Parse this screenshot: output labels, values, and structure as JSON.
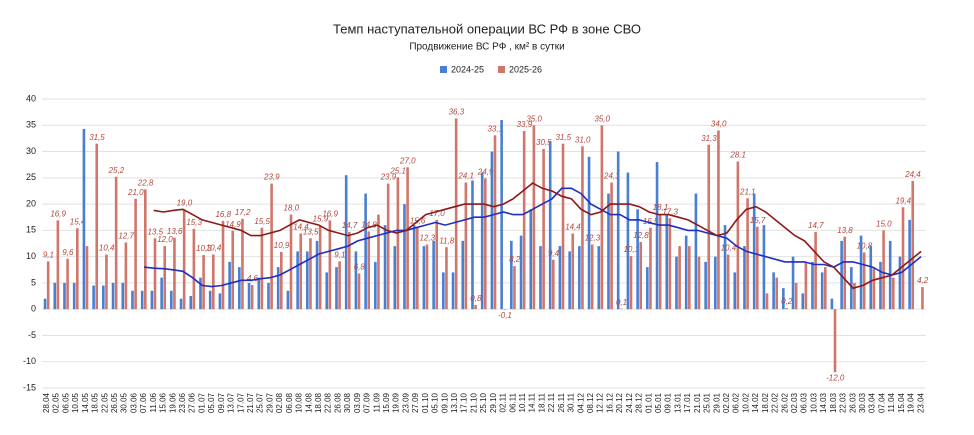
{
  "chart_data": {
    "type": "bar",
    "title": "Темп наступательной операции ВС РФ в зоне СВО",
    "subtitle": "Продвижение ВС РФ , км² в сутки",
    "categories": [
      "28.04",
      "02.05",
      "06.05",
      "10.05",
      "14.05",
      "18.05",
      "22.05",
      "26.05",
      "30.05",
      "03.06",
      "07.06",
      "11.06",
      "15.06",
      "19.06",
      "23.06",
      "27.06",
      "01.07",
      "05.07",
      "09.07",
      "13.07",
      "17.07",
      "21.07",
      "25.07",
      "29.07",
      "02.08",
      "06.08",
      "10.08",
      "14.08",
      "18.08",
      "22.08",
      "26.08",
      "30.08",
      "03.09",
      "07.09",
      "11.09",
      "15.09",
      "19.09",
      "23.09",
      "27.09",
      "01.10",
      "05.10",
      "09.10",
      "13.10",
      "17.10",
      "21.10",
      "25.10",
      "29.10",
      "02.11",
      "06.11",
      "10.11",
      "14.11",
      "18.11",
      "22.11",
      "26.11",
      "30.11",
      "04.12",
      "08.12",
      "12.12",
      "16.12",
      "20.12",
      "24.12",
      "28.12",
      "01.01",
      "05.01",
      "09.01",
      "13.01",
      "17.01",
      "21.01",
      "25.01",
      "29.01",
      "02.02",
      "06.02",
      "10.02",
      "14.02",
      "18.02",
      "22.02",
      "26.02",
      "02.03",
      "06.03",
      "10.03",
      "14.03",
      "18.03",
      "22.03",
      "26.03",
      "30.03",
      "03.04",
      "07.04",
      "11.04",
      "15.04",
      "19.04",
      "23.04"
    ],
    "series": [
      {
        "name": "2024-25",
        "color": "#4a7fd0",
        "values": [
          2,
          5,
          5,
          5,
          34.3,
          4.5,
          4.5,
          5,
          5,
          3.5,
          3.5,
          3.5,
          6,
          3.5,
          2,
          2.5,
          6,
          3.5,
          3,
          9,
          8,
          5,
          6,
          5,
          8,
          3.5,
          11,
          11,
          13,
          7,
          8,
          25.5,
          11,
          22,
          9,
          16,
          12,
          20,
          16,
          12,
          13,
          7,
          7,
          13,
          24.5,
          26,
          30,
          36,
          13,
          14,
          19,
          12,
          32,
          12,
          11,
          12,
          29,
          12,
          22,
          30,
          26,
          19,
          8,
          28,
          18,
          10,
          14,
          22,
          9,
          10,
          16,
          7,
          12,
          22,
          16,
          7,
          4,
          10,
          3,
          9,
          7,
          2,
          13,
          8,
          14,
          12,
          9,
          13,
          10,
          17,
          null
        ]
      },
      {
        "name": "2025-26",
        "color": "#d0766a",
        "values": [
          9.1,
          16.9,
          9.6,
          15.4,
          12.0,
          31.5,
          10.4,
          25.2,
          12.7,
          21.0,
          22.8,
          13.5,
          12.0,
          13.6,
          19.0,
          15.3,
          10.3,
          10.4,
          16.8,
          14.9,
          17.2,
          4.6,
          15.5,
          23.9,
          10.9,
          18.0,
          14.4,
          13.5,
          15.9,
          16.9,
          9.1,
          14.7,
          6.8,
          14.8,
          18.0,
          23.9,
          25.1,
          27.0,
          15.6,
          12.3,
          17.0,
          11.8,
          36.3,
          24.1,
          0.8,
          24.9,
          33.1,
          -0.1,
          8.2,
          33.9,
          35.0,
          30.5,
          9.4,
          31.5,
          14.4,
          31.0,
          12.3,
          35.0,
          24.1,
          0.1,
          10.1,
          12.8,
          15.5,
          18.1,
          17.3,
          12.0,
          12.0,
          10.0,
          31.3,
          34.0,
          10.4,
          28.1,
          21.1,
          15.7,
          3.0,
          6.0,
          0.2,
          5.0,
          9.0,
          14.7,
          8.0,
          -12.0,
          13.8,
          5.0,
          10.8,
          8.0,
          15.0,
          6.0,
          19.4,
          24.4,
          4.2
        ],
        "value_labels": [
          "9,1",
          "16,9",
          "9,6",
          "15,4",
          null,
          "31,5",
          "10,4",
          "25,2",
          "12,7",
          "21,0",
          "22,8",
          "13,5",
          "12,0",
          "13,6",
          "19,0",
          "15,3",
          "10,3",
          "10,4",
          "16,8",
          "14,9",
          "17,2",
          "4,6",
          "15,5",
          "23,9",
          "10,9",
          "18,0",
          "14,4",
          "13,5",
          "15,9",
          "16,9",
          "9,1",
          "14,7",
          "6,8",
          "14,8",
          null,
          "23,9",
          "25,1",
          "27,0",
          "15,6",
          "12,3",
          "17,0",
          "11,8",
          "36,3",
          "24,1",
          "0,8",
          "24,9",
          "33,1",
          "-0,1",
          "8,2",
          "33,9",
          "35,0",
          "30,5",
          "9,4",
          "31,5",
          "14,4",
          "31,0",
          "12,3",
          "35,0",
          "24,1",
          "0,1",
          "10,1",
          "12,8",
          "15,5",
          "18,1",
          "17,3",
          null,
          null,
          null,
          "31,3",
          "34,0",
          "10,4",
          "28,1",
          "21,1",
          "15,7",
          null,
          null,
          "0,2",
          null,
          null,
          "14,7",
          null,
          "-12,0",
          "13,8",
          null,
          "10,8",
          null,
          "15,0",
          null,
          "19,4",
          "24,4",
          "4,2"
        ]
      }
    ],
    "lines": [
      {
        "color": "#1f2fc0",
        "values": [
          null,
          null,
          null,
          null,
          null,
          null,
          null,
          null,
          null,
          null,
          8,
          7.8,
          7.7,
          7.5,
          7.2,
          6,
          4.5,
          4.3,
          4.5,
          5,
          5.5,
          5.5,
          5.8,
          6,
          6.5,
          7.5,
          8.5,
          9.5,
          10.5,
          11,
          11.5,
          12,
          13,
          13.5,
          14,
          14.5,
          15,
          15,
          15.5,
          16,
          16.5,
          16,
          16.5,
          17,
          17.5,
          17.5,
          18,
          18.5,
          18,
          18,
          19,
          20,
          21,
          23,
          23,
          22,
          20,
          19,
          18,
          18,
          17,
          17,
          16.5,
          16,
          16,
          15.5,
          15,
          15,
          14.5,
          14,
          13.5,
          12,
          11,
          10.5,
          10,
          9.5,
          9,
          9,
          9,
          8.5,
          8.5,
          8,
          9,
          9,
          8.5,
          8,
          7,
          6.5,
          7,
          8.5,
          10
        ]
      },
      {
        "color": "#8b1a1a",
        "values": [
          null,
          null,
          null,
          null,
          null,
          null,
          null,
          null,
          null,
          null,
          null,
          18.8,
          18.5,
          18.8,
          19,
          18,
          17,
          16.5,
          16,
          15.5,
          15,
          14,
          14,
          14.5,
          15,
          16,
          17,
          16.5,
          16,
          15,
          14.5,
          14,
          14.5,
          15.5,
          16,
          15,
          14.5,
          15,
          16.5,
          18,
          18.5,
          19,
          19.5,
          20,
          20,
          20,
          19.5,
          20,
          21,
          22.5,
          24,
          23,
          22.5,
          21.5,
          21,
          19,
          18,
          18.5,
          20,
          20,
          20,
          19.5,
          18.5,
          18,
          18,
          17.5,
          17,
          16,
          15,
          14,
          14.5,
          17,
          19,
          19.5,
          18.5,
          17,
          15.5,
          14,
          13,
          11,
          9,
          8,
          6,
          4,
          4.5,
          5.5,
          6,
          6.5,
          8,
          9.5,
          11
        ]
      }
    ],
    "ylim": [
      -15,
      40
    ],
    "yticks": [
      -15,
      -10,
      -5,
      0,
      5,
      10,
      15,
      20,
      25,
      30,
      35,
      40
    ],
    "grid": true
  }
}
